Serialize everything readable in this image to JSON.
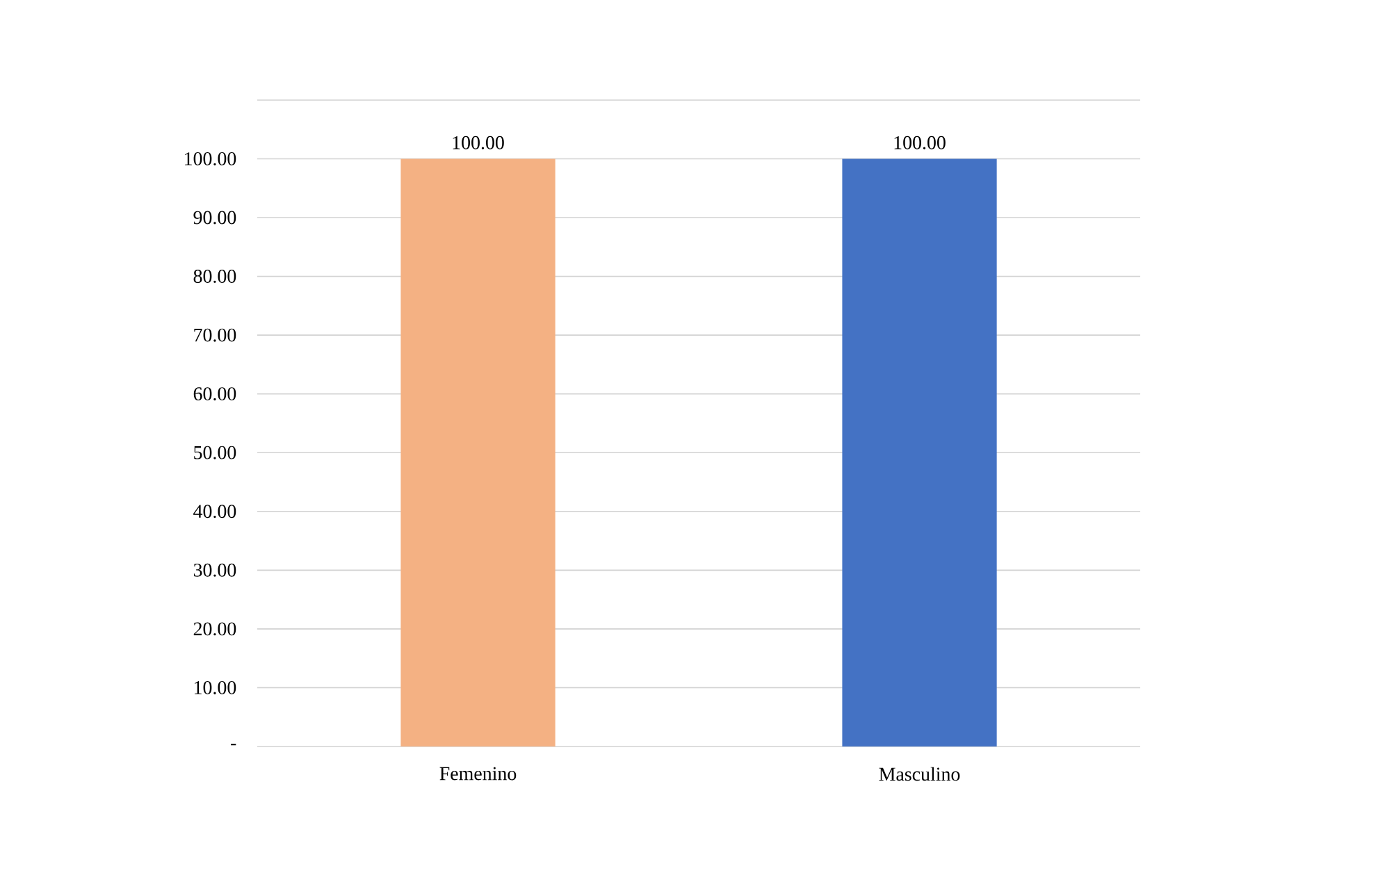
{
  "chart_data": {
    "type": "bar",
    "categories": [
      "Femenino",
      "Masculino"
    ],
    "values": [
      100,
      100
    ],
    "colors": [
      "#f4b183",
      "#4472c4"
    ],
    "value_labels": [
      "100.00",
      "100.00"
    ],
    "ylim": [
      0,
      110
    ],
    "yticks": [
      {
        "value": 0,
        "label": "-"
      },
      {
        "value": 10,
        "label": "10.00"
      },
      {
        "value": 20,
        "label": "20.00"
      },
      {
        "value": 30,
        "label": "30.00"
      },
      {
        "value": 40,
        "label": "40.00"
      },
      {
        "value": 50,
        "label": "50.00"
      },
      {
        "value": 60,
        "label": "60.00"
      },
      {
        "value": 70,
        "label": "70.00"
      },
      {
        "value": 80,
        "label": "80.00"
      },
      {
        "value": 90,
        "label": "90.00"
      },
      {
        "value": 100,
        "label": "100.00"
      },
      {
        "value": 110,
        "label": null
      }
    ],
    "grid": "y"
  }
}
